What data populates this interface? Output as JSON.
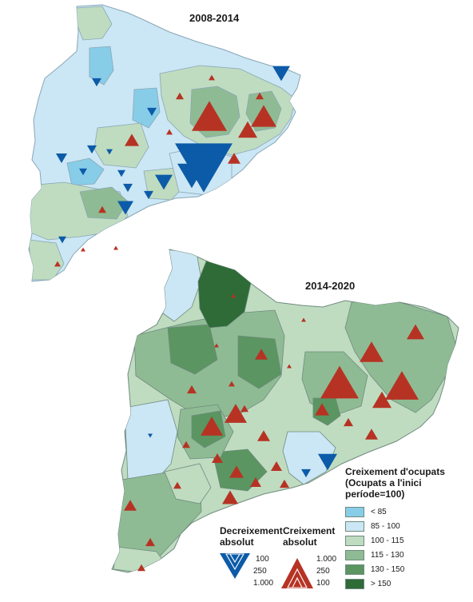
{
  "maps": [
    {
      "title": "2008-2014"
    },
    {
      "title": "2014-2020"
    }
  ],
  "legend": {
    "title_lines": [
      "Creixement d'ocupats",
      "(Ocupats a l'inici",
      "període=100)"
    ],
    "classes": [
      {
        "label": "< 85",
        "color": "#87cde8"
      },
      {
        "label": "85 - 100",
        "color": "#cbe6f4"
      },
      {
        "label": "100 - 115",
        "color": "#bfdcc0"
      },
      {
        "label": "115 - 130",
        "color": "#8fbb94"
      },
      {
        "label": "130 - 150",
        "color": "#5b9561"
      },
      {
        "label": "> 150",
        "color": "#2e6b37"
      }
    ]
  },
  "symbols": {
    "decrease": {
      "title_lines": [
        "Decreixement",
        "absolut"
      ],
      "values": [
        "100",
        "250",
        "1.000"
      ],
      "color": "#0c5ba8",
      "icon": "down-triangle-icon"
    },
    "increase": {
      "title_lines": [
        "Creixement",
        "absolut"
      ],
      "values": [
        "1.000",
        "250",
        "100"
      ],
      "color": "#b63324",
      "icon": "up-triangle-icon"
    }
  }
}
